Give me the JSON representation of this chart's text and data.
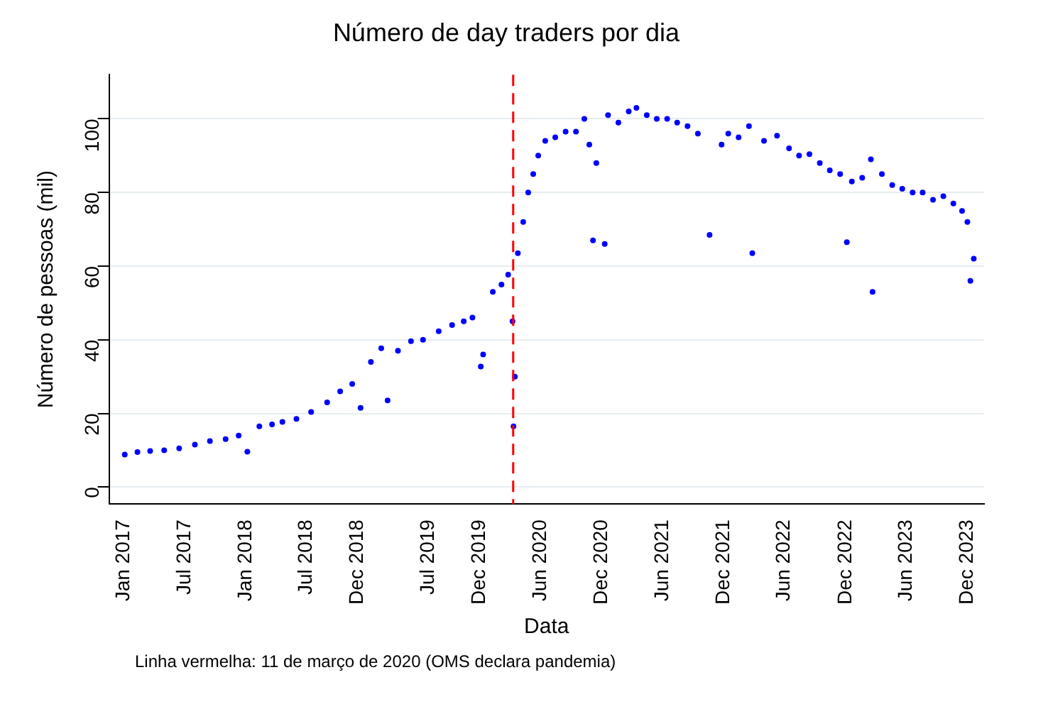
{
  "chart_data": {
    "type": "scatter",
    "title": "Número de day traders por dia",
    "xlabel": "Data",
    "ylabel": "Número de pessoas (mil)",
    "annotations": [
      "Linha vermelha: 11 de março de 2020 (OMS declara pandemia)"
    ],
    "xlim": [
      "2016-11-17",
      "2024-01-20"
    ],
    "ylim": [
      -4.6,
      112
    ],
    "xticks": [
      {
        "value": "2017-01-01",
        "label": "Jan 2017"
      },
      {
        "value": "2017-07-01",
        "label": "Jul 2017"
      },
      {
        "value": "2018-01-01",
        "label": "Jan 2018"
      },
      {
        "value": "2018-07-01",
        "label": "Jul 2018"
      },
      {
        "value": "2018-12-01",
        "label": "Dec 2018"
      },
      {
        "value": "2019-07-01",
        "label": "Jul 2019"
      },
      {
        "value": "2019-12-01",
        "label": "Dec 2019"
      },
      {
        "value": "2020-06-01",
        "label": "Jun 2020"
      },
      {
        "value": "2020-12-01",
        "label": "Dec 2020"
      },
      {
        "value": "2021-06-01",
        "label": "Jun 2021"
      },
      {
        "value": "2021-12-01",
        "label": "Dec 2021"
      },
      {
        "value": "2022-06-01",
        "label": "Jun 2022"
      },
      {
        "value": "2022-12-01",
        "label": "Dec 2022"
      },
      {
        "value": "2023-06-01",
        "label": "Jun 2023"
      },
      {
        "value": "2023-12-01",
        "label": "Dec 2023"
      }
    ],
    "yticks": [
      0,
      20,
      40,
      60,
      80,
      100
    ],
    "grid": "y",
    "marker": "circle",
    "legend": false,
    "ref_lines": [
      {
        "axis": "x",
        "value": "2020-03-11",
        "color": "#ff0000",
        "line_style": "dashed"
      }
    ],
    "series": [
      {
        "color": "#0000ff",
        "x": [
          "2017-01-03",
          "2017-02-10",
          "2017-03-20",
          "2017-05-01",
          "2017-06-15",
          "2017-08-01",
          "2017-09-15",
          "2017-11-01",
          "2017-12-10",
          "2018-01-05",
          "2018-02-10",
          "2018-03-20",
          "2018-04-20",
          "2018-06-01",
          "2018-07-15",
          "2018-09-01",
          "2018-10-10",
          "2018-11-15",
          "2018-12-10",
          "2019-01-10",
          "2019-02-10",
          "2019-03-01",
          "2019-04-01",
          "2019-05-10",
          "2019-06-15",
          "2019-08-01",
          "2019-09-10",
          "2019-10-15",
          "2019-11-10",
          "2019-12-05",
          "2019-12-12",
          "2020-01-10",
          "2020-02-05",
          "2020-02-25",
          "2020-03-09",
          "2020-03-12",
          "2020-03-16",
          "2020-03-25",
          "2020-04-10",
          "2020-04-25",
          "2020-05-10",
          "2020-05-25",
          "2020-06-15",
          "2020-07-15",
          "2020-08-15",
          "2020-09-15",
          "2020-10-10",
          "2020-10-25",
          "2020-11-05",
          "2020-11-15",
          "2020-12-10",
          "2020-12-20",
          "2021-01-20",
          "2021-02-20",
          "2021-03-15",
          "2021-04-15",
          "2021-05-15",
          "2021-06-15",
          "2021-07-15",
          "2021-08-15",
          "2021-09-15",
          "2021-10-20",
          "2021-11-25",
          "2021-12-15",
          "2022-01-15",
          "2022-02-15",
          "2022-02-25",
          "2022-04-01",
          "2022-05-10",
          "2022-06-15",
          "2022-07-15",
          "2022-08-15",
          "2022-09-15",
          "2022-10-15",
          "2022-11-15",
          "2022-12-05",
          "2022-12-20",
          "2023-01-20",
          "2023-02-15",
          "2023-02-20",
          "2023-03-20",
          "2023-04-20",
          "2023-05-20",
          "2023-06-20",
          "2023-07-20",
          "2023-08-20",
          "2023-09-20",
          "2023-10-20",
          "2023-11-15",
          "2023-12-01",
          "2023-12-10",
          "2023-12-20"
        ],
        "values": [
          8.8,
          9.5,
          9.8,
          10,
          10.5,
          11.5,
          12.5,
          13,
          14,
          9.6,
          16.5,
          17,
          17.7,
          18.5,
          20.4,
          23,
          26,
          28,
          21.5,
          34,
          37.7,
          23.5,
          37,
          39.6,
          40,
          42.3,
          44,
          45,
          46,
          32.7,
          36,
          53,
          55,
          57.7,
          45,
          16.5,
          30,
          63.5,
          72,
          80,
          85,
          90,
          94,
          95,
          96.5,
          96.5,
          100,
          93,
          67,
          88,
          66,
          101,
          99,
          102,
          103,
          101,
          100,
          100,
          99,
          98,
          96,
          68.5,
          93,
          96,
          95,
          98,
          63.5,
          94,
          95.4,
          92,
          90,
          90.4,
          88,
          86,
          85,
          66.5,
          83,
          84,
          89,
          53,
          85,
          82,
          81,
          80,
          80,
          78,
          79,
          77,
          75,
          72,
          56,
          62
        ]
      }
    ]
  }
}
